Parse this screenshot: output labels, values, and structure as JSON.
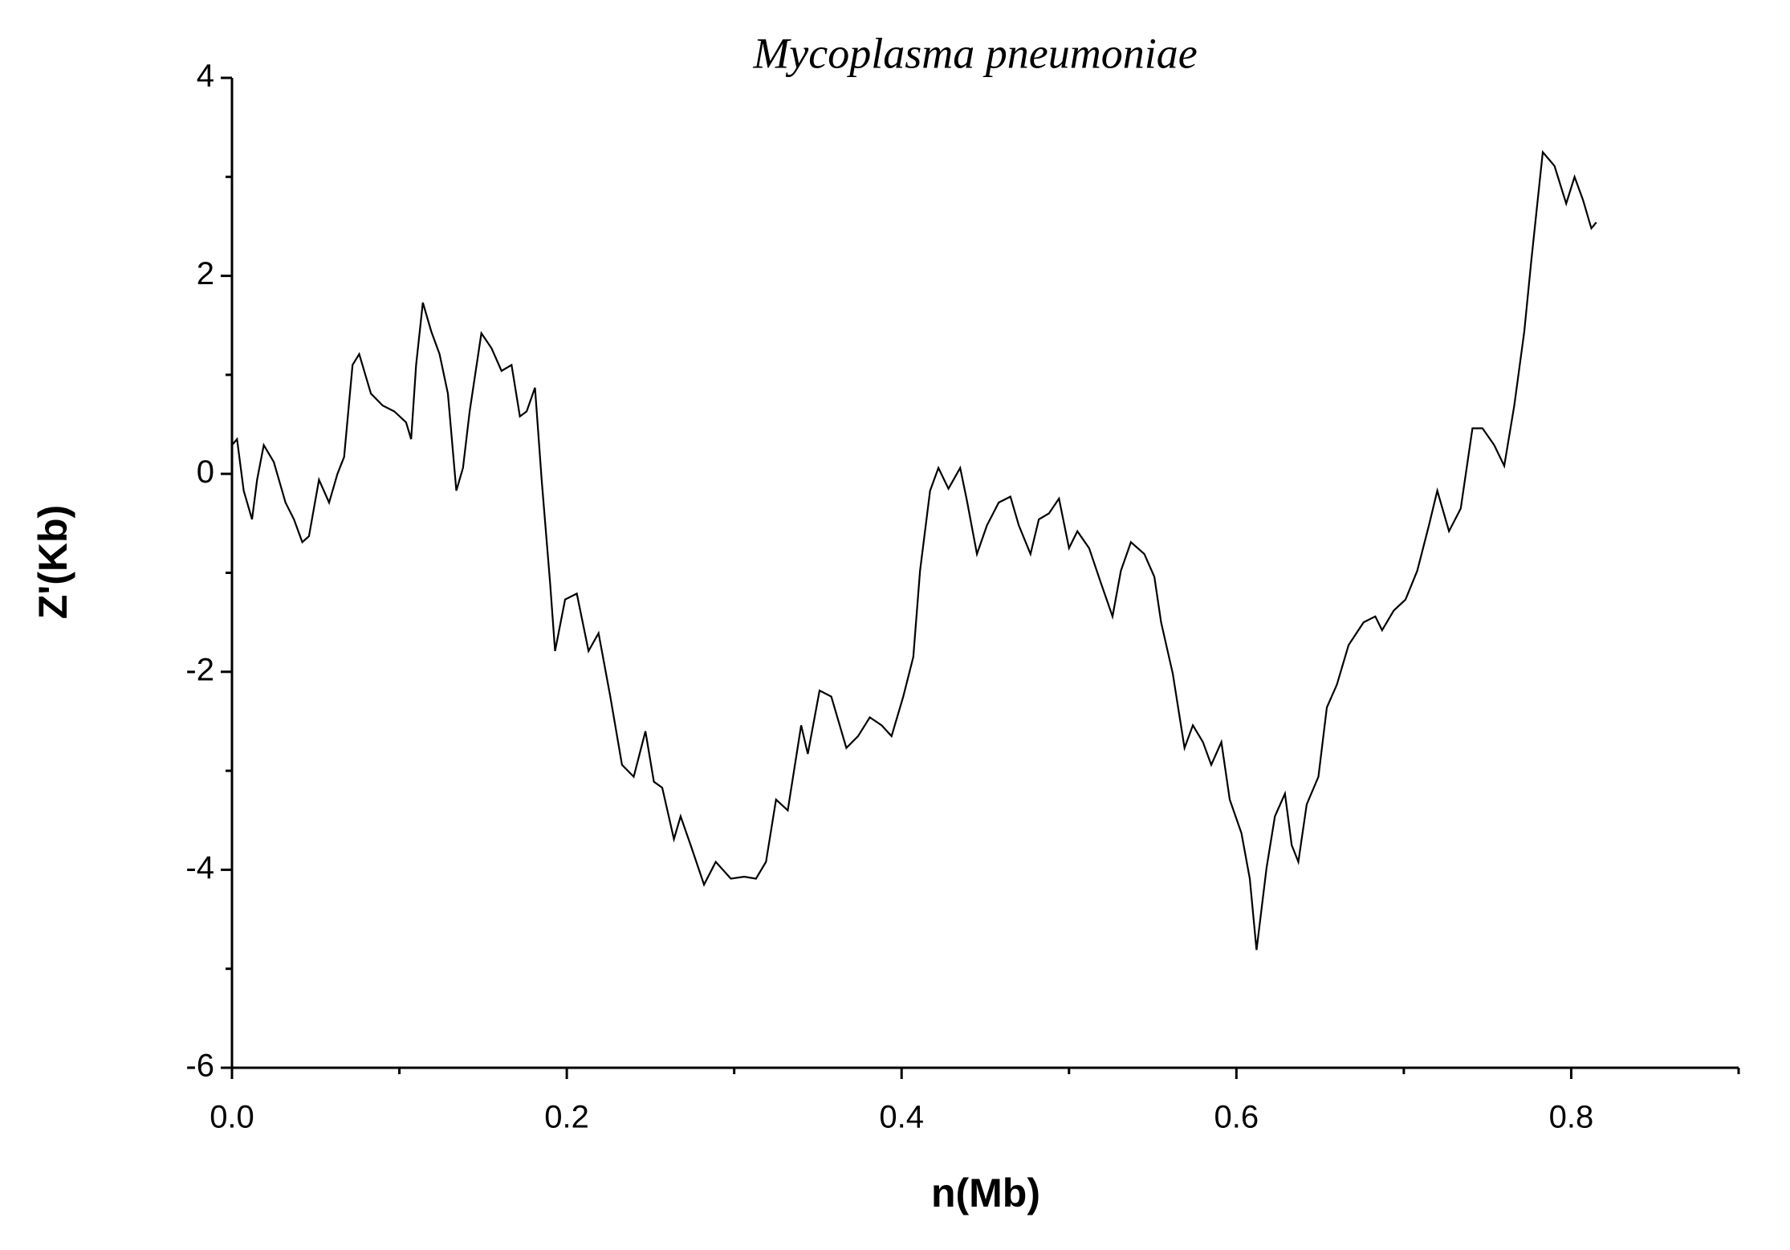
{
  "chart_data": {
    "type": "line",
    "title": "Mycoplasma pneumoniae",
    "xlabel": "n(Mb)",
    "ylabel": "Z'(Kb)",
    "x": [
      0,
      0.003,
      0.007,
      0.012,
      0.015,
      0.019,
      0.025,
      0.032,
      0.037,
      0.042,
      0.046,
      0.052,
      0.058,
      0.063,
      0.067,
      0.072,
      0.076,
      0.083,
      0.09,
      0.097,
      0.104,
      0.107,
      0.11,
      0.114,
      0.119,
      0.124,
      0.129,
      0.134,
      0.138,
      0.142,
      0.149,
      0.155,
      0.161,
      0.167,
      0.172,
      0.176,
      0.181,
      0.185,
      0.19,
      0.193,
      0.199,
      0.206,
      0.213,
      0.219,
      0.226,
      0.233,
      0.24,
      0.247,
      0.252,
      0.257,
      0.264,
      0.268,
      0.274,
      0.282,
      0.289,
      0.298,
      0.306,
      0.313,
      0.319,
      0.325,
      0.332,
      0.34,
      0.344,
      0.351,
      0.358,
      0.367,
      0.374,
      0.381,
      0.388,
      0.394,
      0.401,
      0.407,
      0.411,
      0.417,
      0.422,
      0.428,
      0.435,
      0.439,
      0.445,
      0.451,
      0.458,
      0.465,
      0.47,
      0.477,
      0.482,
      0.488,
      0.494,
      0.5,
      0.505,
      0.512,
      0.519,
      0.526,
      0.531,
      0.537,
      0.545,
      0.551,
      0.555,
      0.562,
      0.569,
      0.574,
      0.58,
      0.585,
      0.591,
      0.596,
      0.603,
      0.608,
      0.612,
      0.618,
      0.623,
      0.629,
      0.633,
      0.637,
      0.642,
      0.649,
      0.654,
      0.66,
      0.667,
      0.676,
      0.683,
      0.687,
      0.694,
      0.701,
      0.708,
      0.715,
      0.72,
      0.727,
      0.734,
      0.741,
      0.747,
      0.754,
      0.76,
      0.766,
      0.772,
      0.776,
      0.783,
      0.79,
      0.797,
      0.802,
      0.807,
      0.812,
      0.815
    ],
    "series": [
      {
        "name": "Mycoplasma pneumoniae",
        "color": "#000000",
        "values": [
          0.29,
          0.35,
          -0.17,
          -0.46,
          -0.06,
          0.29,
          0.12,
          -0.29,
          -0.46,
          -0.69,
          -0.63,
          -0.06,
          -0.29,
          0,
          0.17,
          1.1,
          1.21,
          0.81,
          0.69,
          0.63,
          0.52,
          0.35,
          1.1,
          1.73,
          1.44,
          1.21,
          0.81,
          -0.17,
          0.06,
          0.63,
          1.42,
          1.27,
          1.04,
          1.1,
          0.58,
          0.63,
          0.87,
          -0.06,
          -1.1,
          -1.79,
          -1.27,
          -1.21,
          -1.79,
          -1.61,
          -2.25,
          -2.94,
          -3.06,
          -2.6,
          -3.11,
          -3.17,
          -3.69,
          -3.46,
          -3.75,
          -4.15,
          -3.92,
          -4.09,
          -4.07,
          -4.09,
          -3.92,
          -3.29,
          -3.4,
          -2.54,
          -2.83,
          -2.19,
          -2.25,
          -2.77,
          -2.65,
          -2.46,
          -2.54,
          -2.65,
          -2.25,
          -1.85,
          -0.98,
          -0.17,
          0.06,
          -0.15,
          0.06,
          -0.27,
          -0.81,
          -0.52,
          -0.29,
          -0.23,
          -0.52,
          -0.81,
          -0.46,
          -0.4,
          -0.25,
          -0.75,
          -0.58,
          -0.75,
          -1.1,
          -1.44,
          -0.98,
          -0.69,
          -0.81,
          -1.04,
          -1.5,
          -2.02,
          -2.77,
          -2.54,
          -2.71,
          -2.94,
          -2.71,
          -3.29,
          -3.63,
          -4.09,
          -4.81,
          -3.98,
          -3.46,
          -3.23,
          -3.75,
          -3.92,
          -3.34,
          -3.06,
          -2.36,
          -2.13,
          -1.73,
          -1.5,
          -1.44,
          -1.58,
          -1.38,
          -1.27,
          -0.98,
          -0.52,
          -0.17,
          -0.58,
          -0.35,
          0.46,
          0.46,
          0.29,
          0.08,
          0.69,
          1.44,
          2.13,
          3.25,
          3.11,
          2.73,
          3.0,
          2.77,
          2.48,
          2.54
        ]
      }
    ],
    "xlim": [
      0,
      0.9
    ],
    "xticks": [
      {
        "value": 0,
        "label": "0.0"
      },
      0.2,
      0.4,
      0.6,
      0.8
    ],
    "xminor_ticks": [
      0.1,
      0.3,
      0.5,
      0.7,
      0.9
    ],
    "ylim": [
      -6,
      4
    ],
    "yticks": [
      -6,
      -4,
      -2,
      0,
      2,
      4
    ],
    "yminor_ticks": [
      -5,
      -3,
      -1,
      1,
      3
    ],
    "grid": false
  }
}
